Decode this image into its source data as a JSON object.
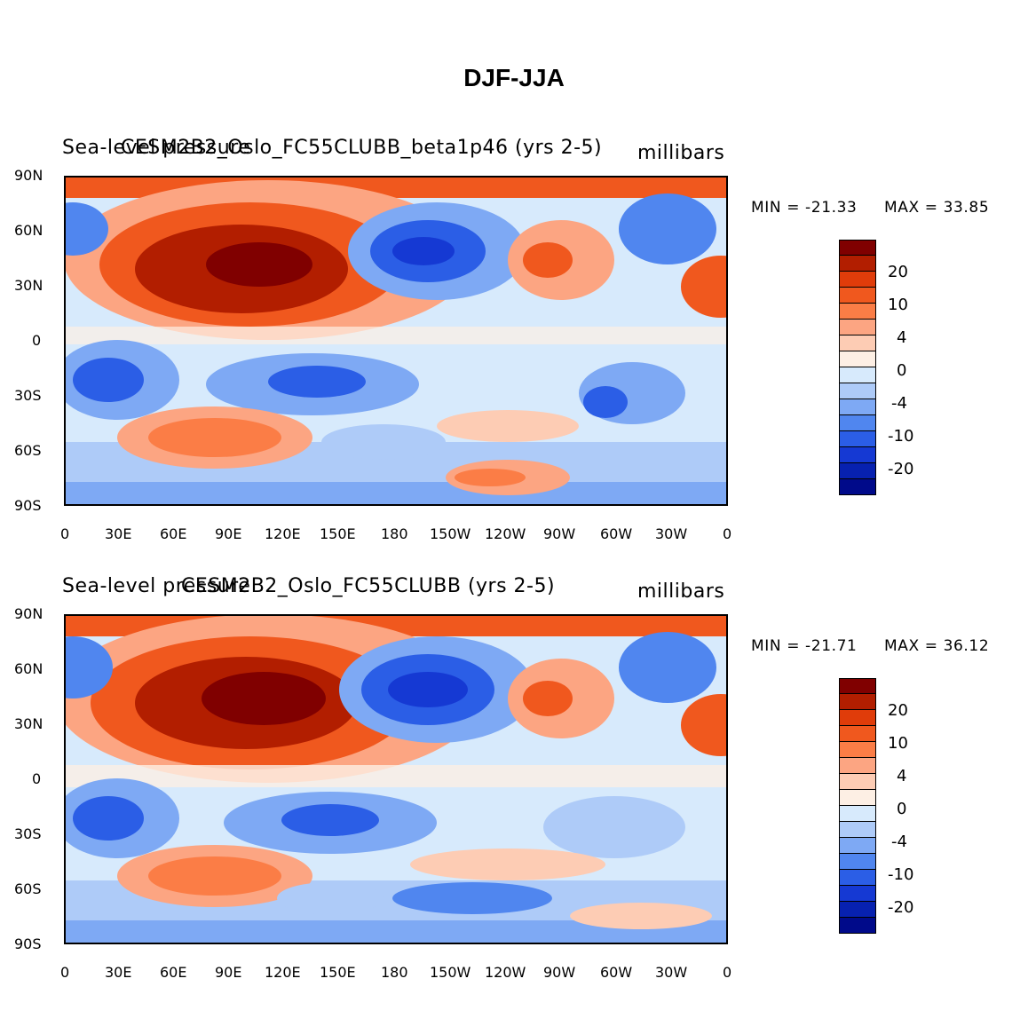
{
  "title": "DJF-JJA",
  "panels": [
    {
      "left_overlap_a": "Sea-level pressure",
      "left_overlap_b": "CESM2B2_Oslo_FC55CLUBB_beta1p46 (yrs 2-5)",
      "units": "millibars",
      "min_text": "MIN = -21.33",
      "max_text": "MAX =  33.85"
    },
    {
      "left_overlap_a": "Sea-level pressure",
      "left_overlap_b": "CESM2B2_Oslo_FC55CLUBB (yrs 2-5)",
      "units": "millibars",
      "min_text": "MIN = -21.71",
      "max_text": "MAX =  36.12"
    }
  ],
  "lat_labels": [
    "90N",
    "60N",
    "30N",
    "0",
    "30S",
    "60S",
    "90S"
  ],
  "lon_labels": [
    "0",
    "30E",
    "60E",
    "90E",
    "120E",
    "150E",
    "180",
    "150W",
    "120W",
    "90W",
    "60W",
    "30W",
    "0"
  ],
  "colorbar": {
    "colors": [
      "#800000",
      "#b21e00",
      "#e03c0a",
      "#f0581e",
      "#fb7d46",
      "#fca582",
      "#fdccb4",
      "#fdefe4",
      "#d7eafc",
      "#aecbf8",
      "#7ea9f4",
      "#5086ef",
      "#2b5ee6",
      "#1539d3",
      "#0721b0",
      "#000a8a"
    ],
    "labels": [
      "20",
      "10",
      "4",
      "0",
      "-4",
      "-10",
      "-20"
    ]
  }
}
